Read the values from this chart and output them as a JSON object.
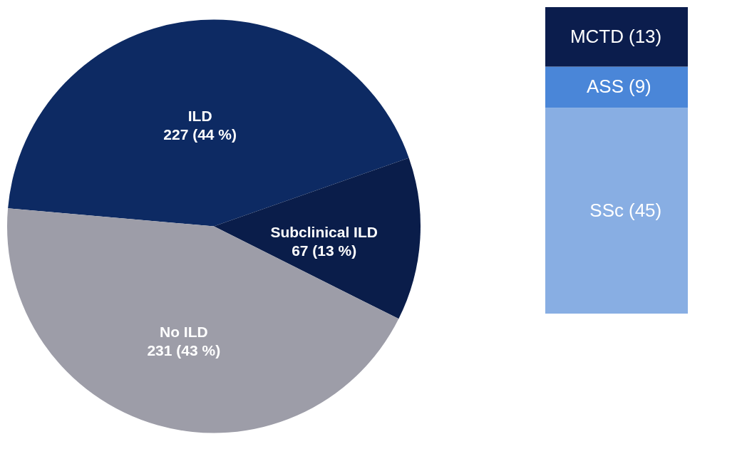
{
  "chart_data": [
    {
      "type": "pie",
      "categories": [
        "ILD",
        "Subclinical ILD",
        "No ILD"
      ],
      "values": [
        227,
        67,
        231
      ],
      "colors": [
        "#0d2a63",
        "#0a1d4a",
        "#9d9da8"
      ],
      "value_labels": [
        "227 (44 %)",
        "67 (13 %)",
        "231 (43 %)"
      ]
    },
    {
      "type": "bar",
      "stacked": true,
      "categories": [
        null
      ],
      "series": [
        {
          "name": "SSc",
          "color": "#88aee3",
          "values": [
            45
          ],
          "value_labels": [
            "(45)"
          ]
        },
        {
          "name": "ASS",
          "color": "#4a86d8",
          "values": [
            9
          ],
          "value_labels": [
            "(9)"
          ]
        },
        {
          "name": "MCTD",
          "color": "#0b1d4d",
          "values": [
            13
          ],
          "value_labels": [
            "(13)"
          ]
        }
      ]
    }
  ]
}
